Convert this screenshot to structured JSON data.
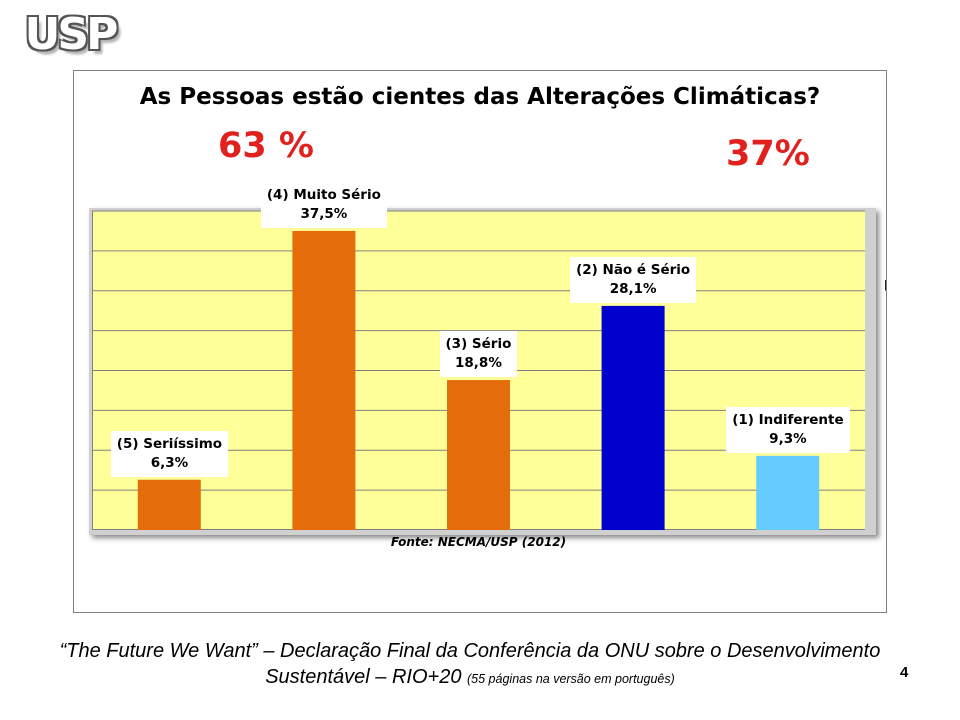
{
  "logo": {
    "text": "USP"
  },
  "chart_data": {
    "type": "bar",
    "title": "As Pessoas estão cientes das Alterações Climáticas?",
    "categories": [
      "(5) Seriíssimo",
      "(4) Muito Sério",
      "(3) Sério",
      "(2) Não é Sério",
      "(1) Indiferente"
    ],
    "values": [
      6.3,
      37.5,
      18.8,
      28.1,
      9.3
    ],
    "value_labels": [
      "6,3%",
      "37,5%",
      "18,8%",
      "28,1%",
      "9,3%"
    ],
    "colors": [
      "#e46c0a",
      "#e46c0a",
      "#e46c0a",
      "#0000cc",
      "#66ccff"
    ],
    "ylim": [
      0,
      40
    ],
    "grid": true,
    "group_totals": {
      "left": "63 %",
      "right": "37%"
    },
    "source": "Fonte: NECMA/USP (2012)"
  },
  "caption": {
    "main": "“The Future We Want” – Declaração Final da Conferência da ONU sobre o Desenvolvimento Sustentável – RIO+20",
    "note": "(55 páginas na versão em português)"
  },
  "page_number": "4"
}
